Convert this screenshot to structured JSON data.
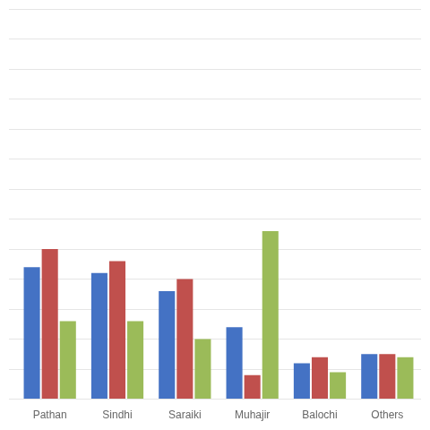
{
  "chart_data": {
    "type": "bar",
    "categories": [
      "Pathan",
      "Sindhi",
      "Saraiki",
      "Muhajir",
      "Balochi",
      "Others"
    ],
    "series": [
      {
        "color": "#4472C4",
        "values": [
          44,
          42,
          36,
          24,
          12,
          15
        ]
      },
      {
        "color": "#C0504D",
        "values": [
          50,
          46,
          40,
          8,
          14,
          15
        ]
      },
      {
        "color": "#9BBB59",
        "values": [
          26,
          26,
          20,
          56,
          9,
          14
        ]
      }
    ],
    "ylim": [
      0,
      130
    ],
    "yticks": [
      0,
      10,
      20,
      30,
      40,
      50,
      60,
      70,
      80,
      90,
      100,
      110,
      120,
      130
    ],
    "grid": true,
    "tick_labels": "x"
  }
}
